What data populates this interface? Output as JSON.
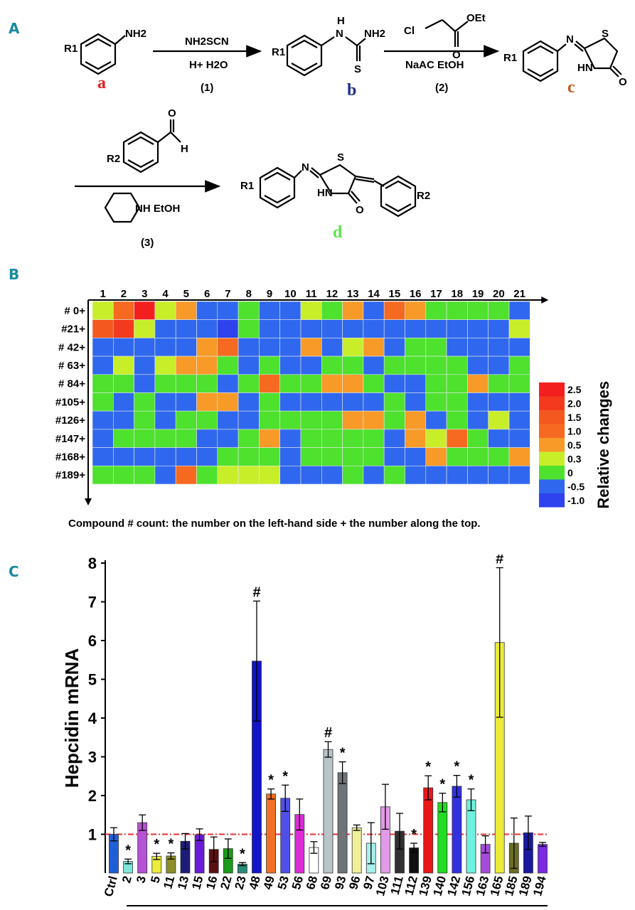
{
  "panels": {
    "a": "A",
    "b": "B",
    "c": "C"
  },
  "scheme": {
    "structure_letters": [
      {
        "label": "a",
        "color": "#e8211d"
      },
      {
        "label": "b",
        "color": "#1d2f8c"
      },
      {
        "label": "c",
        "color": "#c8561a"
      },
      {
        "label": "d",
        "color": "#5ce34a"
      }
    ],
    "substituents": {
      "r1": "R1",
      "r2": "R2",
      "nh2": "NH2",
      "h": "H",
      "s": "S",
      "o": "O",
      "hn": "HN",
      "nh": "NH",
      "n": "N",
      "cl": "Cl",
      "oet": "OEt"
    },
    "step1": {
      "top": "NH2SCN",
      "bottom": "H+   H2O",
      "num": "(1)"
    },
    "step2": {
      "top": "",
      "bottom": "NaAC   EtOH",
      "num": "(2)"
    },
    "step3": {
      "top": "",
      "bottom": "NH   EtOH",
      "num": "(3)"
    }
  },
  "chart_data": [
    {
      "type": "heatmap",
      "columns": [
        "1",
        "2",
        "3",
        "4",
        "5",
        "6",
        "7",
        "8",
        "9",
        "10",
        "11",
        "12",
        "13",
        "14",
        "15",
        "16",
        "17",
        "18",
        "19",
        "20",
        "21"
      ],
      "rows": [
        "# 0+",
        "#21+",
        "# 42+",
        "# 63+",
        "# 84+",
        "#105+",
        "#126+",
        "#147+",
        "#168+",
        "#189+"
      ],
      "values": [
        [
          0.3,
          1.0,
          2.5,
          0.3,
          0.5,
          -0.5,
          -0.5,
          0,
          -0.5,
          -0.5,
          0.3,
          0,
          0.5,
          -0.5,
          1.0,
          0.5,
          0,
          0,
          0,
          0,
          -0.5
        ],
        [
          1.5,
          2.0,
          0.3,
          -0.5,
          -0.5,
          -0.5,
          -1.0,
          0,
          -0.5,
          -0.5,
          -0.5,
          -0.5,
          -0.5,
          -0.5,
          -0.5,
          -0.5,
          -0.5,
          -0.5,
          -0.5,
          -0.5,
          0.3
        ],
        [
          -0.5,
          -0.5,
          -0.5,
          -0.5,
          -0.5,
          0.5,
          1.0,
          -0.5,
          -0.5,
          -0.5,
          0.5,
          -0.5,
          0.3,
          0.5,
          -0.5,
          0,
          0,
          -0.5,
          -0.5,
          -0.5,
          -0.5
        ],
        [
          -0.5,
          0.3,
          -0.5,
          0.3,
          0.5,
          0.5,
          0,
          -0.5,
          0,
          -0.5,
          -0.5,
          0,
          0,
          -0.5,
          0,
          0,
          0,
          0,
          -0.5,
          -0.5,
          0
        ],
        [
          0,
          0,
          -0.5,
          0,
          0,
          0,
          -0.5,
          0,
          1.0,
          0,
          0,
          0.5,
          0.5,
          0,
          -0.5,
          -0.5,
          0,
          0,
          0.5,
          0,
          0
        ],
        [
          0,
          -0.5,
          0,
          -0.5,
          -0.5,
          0.5,
          0.5,
          -0.5,
          0,
          -0.5,
          -0.5,
          -0.5,
          -0.5,
          -0.5,
          0,
          -0.5,
          0,
          0,
          -0.5,
          -0.5,
          -0.5
        ],
        [
          -0.5,
          -0.5,
          0,
          -0.5,
          0,
          0,
          -0.5,
          -0.5,
          0,
          0,
          0,
          0,
          0.5,
          0.5,
          0,
          0.5,
          -0.5,
          0,
          -0.5,
          0.3,
          -0.5
        ],
        [
          -0.5,
          0,
          0,
          0,
          0,
          -0.5,
          -0.5,
          0,
          0.5,
          -0.5,
          0,
          0,
          0,
          0,
          -0.5,
          0.5,
          0.3,
          1.0,
          0,
          -0.5,
          -0.5
        ],
        [
          -0.5,
          -0.5,
          -0.5,
          -0.5,
          -0.5,
          -0.5,
          0,
          0,
          0,
          -0.5,
          0,
          0,
          0,
          0,
          -0.5,
          -0.5,
          0.5,
          0,
          0,
          0,
          0.5
        ],
        [
          0,
          0,
          0,
          -0.5,
          1.0,
          0,
          0.3,
          0.3,
          0.3,
          -0.5,
          -0.5,
          -0.5,
          0,
          -0.5,
          0,
          -0.5,
          -0.5,
          -0.5,
          -0.5,
          -0.5,
          -0.5
        ]
      ],
      "legend": {
        "title": "Relative changes",
        "levels": [
          2.5,
          2.0,
          1.5,
          1.0,
          0.5,
          0.3,
          0,
          -0.5,
          -1.0
        ],
        "labels": [
          "2.5",
          "2.0",
          "1.5",
          "1.0",
          "0.5",
          "0.3",
          "0",
          "-0.5",
          "-1.0"
        ],
        "colors": [
          "#f31f1f",
          "#f33a1f",
          "#f5581f",
          "#f56a20",
          "#f79a28",
          "#c8ee2a",
          "#4ee12e",
          "#2f68ee",
          "#2e42ee"
        ]
      },
      "footnote": "Compound # count: the number on the left-hand side + the number along the top."
    },
    {
      "type": "bar",
      "ylabel": "Hepcidin mRNA",
      "ylim": [
        0,
        8
      ],
      "yticks": [
        "1",
        "2",
        "3",
        "4",
        "5",
        "6",
        "7",
        "8"
      ],
      "reference_line": 1.0,
      "categories": [
        "Ctrl",
        "2",
        "3",
        "5",
        "11",
        "13",
        "15",
        "16",
        "22",
        "23",
        "48",
        "49",
        "53",
        "56",
        "68",
        "69",
        "93",
        "96",
        "97",
        "103",
        "111",
        "112",
        "139",
        "140",
        "142",
        "156",
        "163",
        "165",
        "185",
        "189",
        "194"
      ],
      "values": [
        1.0,
        0.3,
        1.3,
        0.43,
        0.44,
        0.82,
        0.99,
        0.61,
        0.63,
        0.23,
        5.47,
        2.04,
        1.93,
        1.51,
        0.66,
        3.19,
        2.59,
        1.17,
        0.77,
        1.71,
        1.08,
        0.65,
        2.2,
        1.82,
        2.24,
        1.89,
        0.74,
        5.95,
        0.77,
        1.04,
        0.74
      ],
      "errors": [
        0.17,
        0.06,
        0.2,
        0.08,
        0.08,
        0.2,
        0.15,
        0.32,
        0.25,
        0.04,
        1.55,
        0.13,
        0.34,
        0.4,
        0.15,
        0.2,
        0.28,
        0.07,
        0.53,
        0.58,
        0.46,
        0.12,
        0.31,
        0.24,
        0.28,
        0.28,
        0.22,
        1.93,
        0.65,
        0.43,
        0.05
      ],
      "annotations": [
        "",
        "*",
        "",
        "*",
        "*",
        "",
        "",
        "",
        "",
        "*",
        "#",
        "*",
        "*",
        "",
        "",
        "#",
        "*",
        "",
        "",
        "",
        "",
        "*",
        "*",
        "*",
        "*",
        "*",
        "",
        "#",
        "",
        "",
        ""
      ],
      "colors": [
        "#1f5fd8",
        "#7ee6d8",
        "#b652d4",
        "#ecec3a",
        "#8d8f2a",
        "#1c1c78",
        "#6a1bd8",
        "#5a1010",
        "#1b9a1b",
        "#2a8a7a",
        "#1313c8",
        "#f07024",
        "#5050e8",
        "#dd2bd8",
        "#ffffff",
        "#b8c4c8",
        "#6e7478",
        "#f0f09a",
        "#a8f0ea",
        "#e29ae8",
        "#303030",
        "#101010",
        "#e81818",
        "#22dd22",
        "#3232e0",
        "#70f0e0",
        "#a44cd8",
        "#ecec38",
        "#6b6e22",
        "#1a1aa0",
        "#7a2ae0"
      ]
    }
  ]
}
